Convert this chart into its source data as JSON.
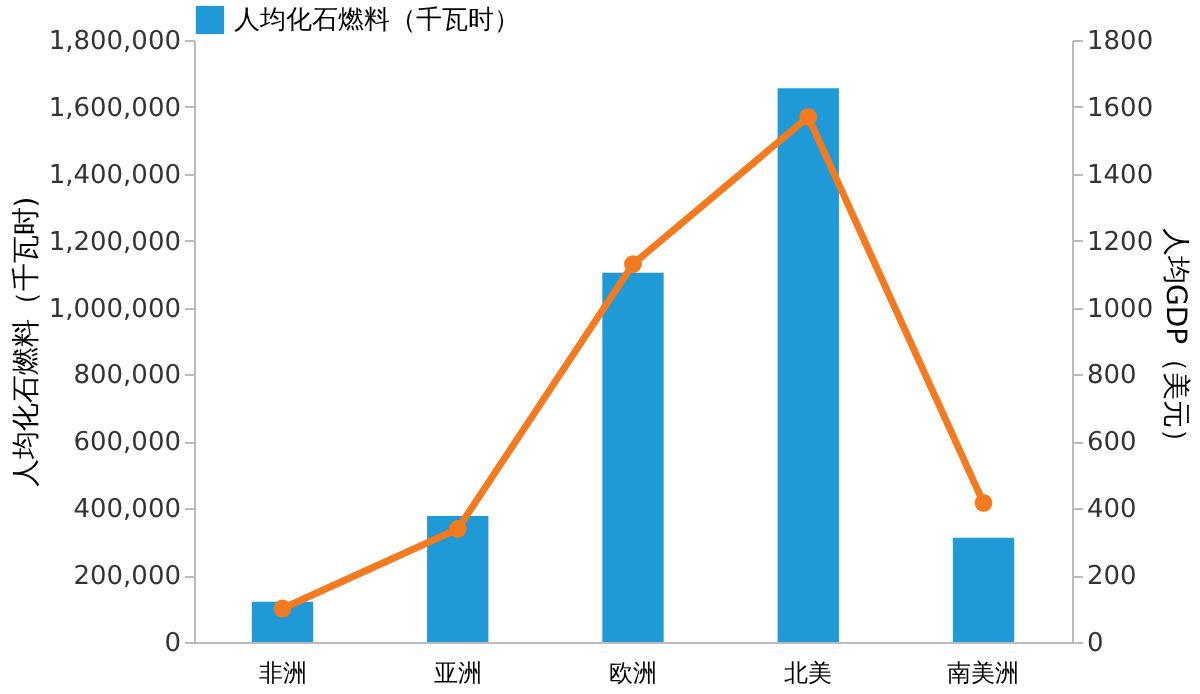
{
  "chart_data": {
    "type": "bar",
    "categories": [
      "非洲",
      "亚洲",
      "欧洲",
      "北美",
      "南美洲"
    ],
    "ylabel": "人均化石燃料（千瓦时)",
    "y2label": "人均GDP（美元）",
    "series": [
      {
        "name": "人均化石燃料（千瓦时）",
        "color": "#1f9ad6",
        "values": [
          120000,
          377000,
          1104000,
          1656000,
          312000
        ]
      },
      {
        "type": "line",
        "axis": "y2",
        "color": "#f47a20",
        "marker": "circle",
        "values": [
          100,
          338,
          1130,
          1570,
          416
        ]
      }
    ],
    "ylim": [
      0,
      1800000
    ],
    "yticks": [
      0,
      {
        "value": 200000,
        "label": "200,000"
      },
      {
        "value": 400000,
        "label": "400,000"
      },
      {
        "value": 600000,
        "label": "600,000"
      },
      {
        "value": 800000,
        "label": "800,000"
      },
      {
        "value": 1000000,
        "label": "1,000,000"
      },
      {
        "value": 1200000,
        "label": "1,200,000"
      },
      {
        "value": 1400000,
        "label": "1,400,000"
      },
      {
        "value": 1600000,
        "label": "1,600,000"
      },
      {
        "value": 1800000,
        "label": "1,800,000"
      }
    ],
    "y2lim": [
      0,
      1800
    ],
    "y2ticks": [
      0,
      200,
      400,
      600,
      800,
      1000,
      1200,
      1400,
      1600,
      1800
    ],
    "grid": false,
    "legend": "top"
  }
}
